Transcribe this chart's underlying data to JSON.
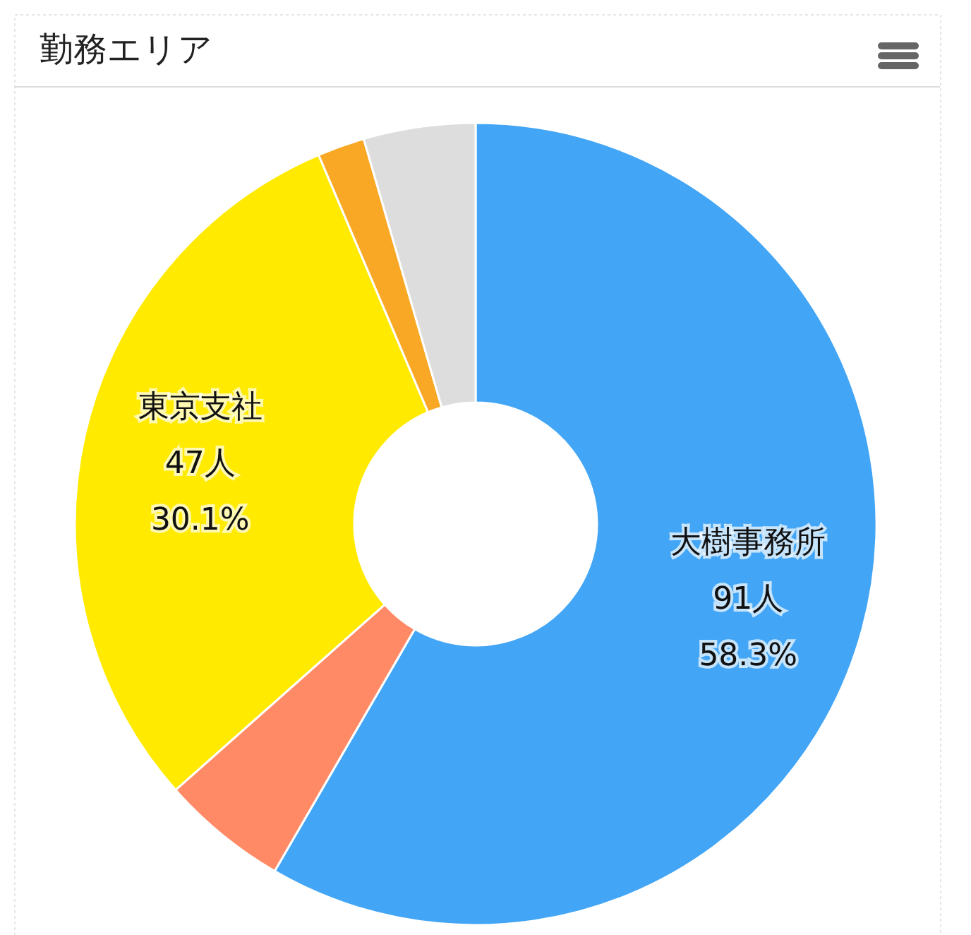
{
  "chart_data": {
    "type": "donut",
    "title": "勤務エリア",
    "categories": [
      "大樹事務所",
      null,
      "東京支社",
      null,
      null
    ],
    "values": [
      58.3,
      5.1,
      30.1,
      1.9,
      4.5
    ],
    "colors": [
      "#42a5f5",
      "#ff8a65",
      "#ffea00",
      "#f9a825",
      "#dddddd"
    ],
    "value_labels": [
      "91人\n58.3%",
      null,
      "47人\n30.1%",
      null,
      null
    ]
  }
}
